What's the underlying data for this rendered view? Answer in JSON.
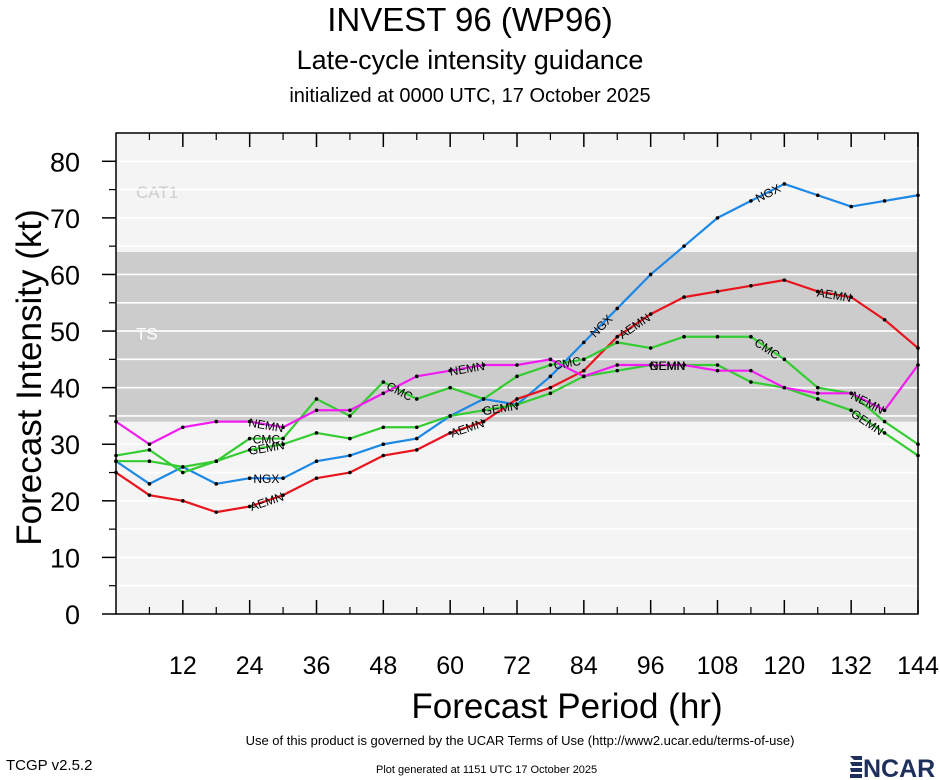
{
  "header": {
    "title": "INVEST 96 (WP96)",
    "subtitle": "Late-cycle intensity guidance",
    "init": "initialized at 0000 UTC, 17 October 2025"
  },
  "footer": {
    "terms": "Use of this product is governed by the UCAR Terms of Use (http://www2.ucar.edu/terms-of-use)",
    "version": "TCGP v2.5.2",
    "generated": "Plot generated at 1151 UTC   17 October 2025",
    "logo": "NCAR"
  },
  "chart_data": {
    "type": "line",
    "title": "INVEST 96 (WP96)",
    "subtitle": "Late-cycle intensity guidance",
    "xlabel": "Forecast Period (hr)",
    "ylabel": "Forecast Intensity (kt)",
    "xlim": [
      0,
      144
    ],
    "ylim": [
      0,
      85
    ],
    "xticks": [
      12,
      24,
      36,
      48,
      60,
      72,
      84,
      96,
      108,
      120,
      132,
      144
    ],
    "yticks": [
      0,
      10,
      20,
      30,
      40,
      50,
      60,
      70,
      80
    ],
    "bands": [
      {
        "label": "TS",
        "from": 34,
        "to": 64,
        "color": "#cccccc"
      },
      {
        "label": "CAT1",
        "from": 64,
        "to": 85,
        "color": "#f4f4f4"
      }
    ],
    "below_band_color": "#f4f4f4",
    "series": [
      {
        "name": "NGX",
        "color": "#1e88e5",
        "x": [
          0,
          6,
          12,
          18,
          24,
          30,
          36,
          42,
          48,
          54,
          60,
          66,
          72,
          78,
          84,
          90,
          96,
          102,
          108,
          114,
          120,
          126,
          132,
          138,
          144
        ],
        "y": [
          27,
          23,
          26,
          23,
          24,
          24,
          27,
          28,
          30,
          31,
          35,
          38,
          37,
          42,
          48,
          54,
          60,
          65,
          70,
          73,
          76,
          74,
          72,
          73,
          74
        ],
        "labels_at": [
          27,
          87,
          117
        ]
      },
      {
        "name": "AEMN",
        "color": "#e8141e",
        "x": [
          0,
          6,
          12,
          18,
          24,
          30,
          36,
          42,
          48,
          54,
          60,
          66,
          72,
          78,
          84,
          90,
          96,
          102,
          108,
          114,
          120,
          126,
          132,
          138,
          144
        ],
        "y": [
          25,
          21,
          20,
          18,
          19,
          21,
          24,
          25,
          28,
          29,
          32,
          34,
          38,
          40,
          43,
          49,
          53,
          56,
          57,
          58,
          59,
          57,
          56,
          52,
          47
        ],
        "labels_at": [
          27,
          63,
          93,
          129
        ]
      },
      {
        "name": "CMC",
        "color": "#35cc33",
        "x": [
          0,
          6,
          12,
          18,
          24,
          30,
          36,
          42,
          48,
          54,
          60,
          66,
          72,
          78,
          84,
          90,
          96,
          102,
          108,
          114,
          120,
          126,
          132,
          138,
          144
        ],
        "y": [
          28,
          29,
          25,
          27,
          31,
          31,
          38,
          35,
          41,
          38,
          40,
          38,
          42,
          44,
          45,
          48,
          47,
          49,
          49,
          49,
          45,
          40,
          39,
          34,
          30
        ],
        "labels_at": [
          27,
          51,
          81,
          117
        ]
      },
      {
        "name": "GEMN",
        "color": "#35cc33",
        "x": [
          0,
          6,
          12,
          18,
          24,
          30,
          36,
          42,
          48,
          54,
          60,
          66,
          72,
          78,
          84,
          90,
          96,
          102,
          108,
          114,
          120,
          126,
          132,
          138,
          144
        ],
        "y": [
          27,
          27,
          26,
          27,
          29,
          30,
          32,
          31,
          33,
          33,
          35,
          36,
          37,
          39,
          42,
          43,
          44,
          44,
          44,
          41,
          40,
          38,
          36,
          32,
          28
        ],
        "labels_at": [
          27,
          69,
          99,
          135
        ]
      },
      {
        "name": "NEMN",
        "color": "#f21cf2",
        "x": [
          0,
          6,
          12,
          18,
          24,
          30,
          36,
          42,
          48,
          54,
          60,
          66,
          72,
          78,
          84,
          90,
          96,
          102,
          108,
          114,
          120,
          126,
          132,
          138,
          144
        ],
        "y": [
          34,
          30,
          33,
          34,
          34,
          33,
          36,
          36,
          39,
          42,
          43,
          44,
          44,
          45,
          42,
          44,
          44,
          44,
          43,
          43,
          40,
          39,
          39,
          36,
          44
        ],
        "labels_at": [
          27,
          63,
          99,
          135
        ]
      }
    ]
  }
}
